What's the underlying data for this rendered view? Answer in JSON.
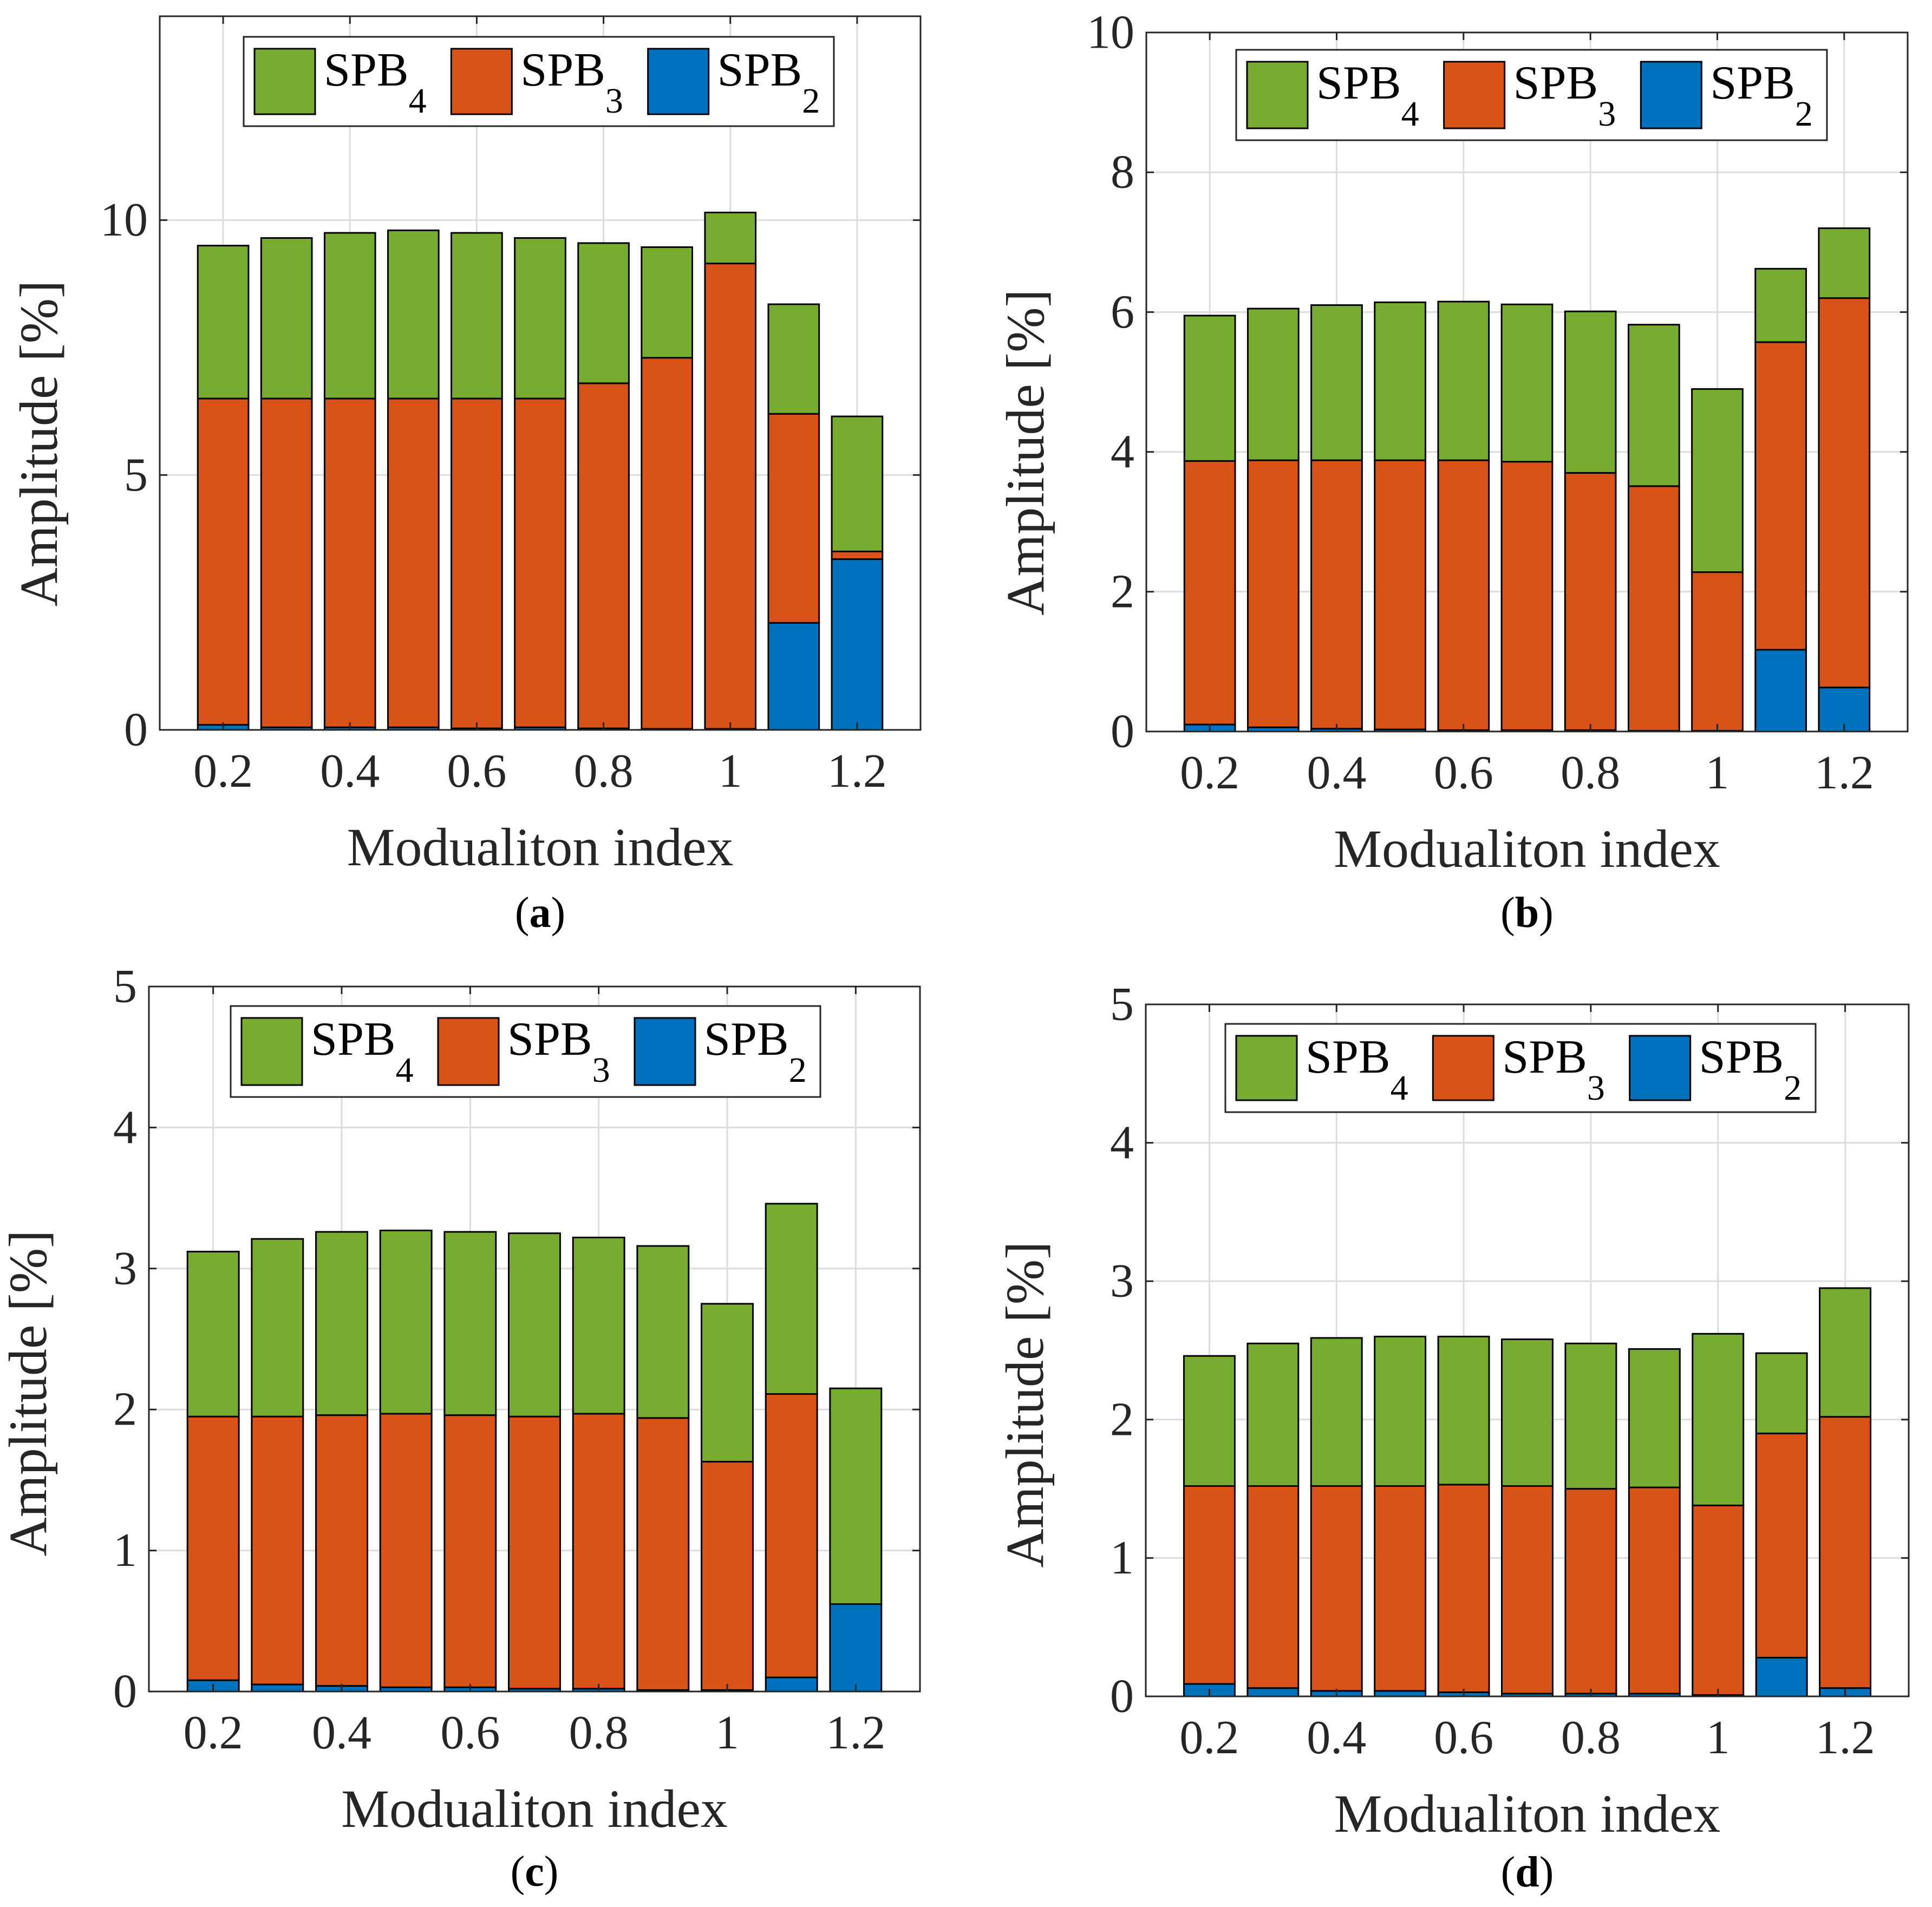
{
  "figure": {
    "colors": {
      "SPB4": "#77ac30",
      "SPB3": "#d95319",
      "SPB2": "#0072bd"
    },
    "legend": [
      {
        "main": "SPB",
        "sub": "4"
      },
      {
        "main": "SPB",
        "sub": "3"
      },
      {
        "main": "SPB",
        "sub": "2"
      }
    ]
  },
  "chart_data": [
    {
      "panel": "a",
      "caption_label": "a",
      "type": "bar",
      "stacked": true,
      "xlabel": "Modualiton index",
      "ylabel": "Amplitude [%]",
      "x": [
        0.2,
        0.3,
        0.4,
        0.5,
        0.6,
        0.7,
        0.8,
        0.9,
        1.0,
        1.1,
        1.2
      ],
      "xticks": [
        "0.2",
        "0.4",
        "0.6",
        "0.8",
        "1",
        "1.2"
      ],
      "xtick_values": [
        0.2,
        0.4,
        0.6,
        0.8,
        1.0,
        1.2
      ],
      "xlim": [
        0.1,
        1.3
      ],
      "ylim": [
        0,
        14
      ],
      "yticks": [
        0,
        5,
        10
      ],
      "ytick_labels": [
        "0",
        "5",
        "10"
      ],
      "grid": true,
      "legend_position": "top",
      "series": [
        {
          "name": "SPB2",
          "values": [
            0.1,
            0.05,
            0.05,
            0.05,
            0.03,
            0.05,
            0.03,
            0.02,
            0.02,
            2.1,
            3.35
          ]
        },
        {
          "name": "SPB3",
          "values": [
            6.4,
            6.45,
            6.45,
            6.45,
            6.47,
            6.45,
            6.77,
            7.28,
            9.13,
            4.1,
            0.15
          ]
        },
        {
          "name": "SPB4",
          "values": [
            3.0,
            3.15,
            3.25,
            3.3,
            3.25,
            3.15,
            2.75,
            2.17,
            1.0,
            2.15,
            2.65
          ]
        }
      ]
    },
    {
      "panel": "b",
      "caption_label": "b",
      "type": "bar",
      "stacked": true,
      "xlabel": "Modualiton index",
      "ylabel": "Amplitude [%]",
      "x": [
        0.2,
        0.3,
        0.4,
        0.5,
        0.6,
        0.7,
        0.8,
        0.9,
        1.0,
        1.1,
        1.2
      ],
      "xticks": [
        "0.2",
        "0.4",
        "0.6",
        "0.8",
        "1",
        "1.2"
      ],
      "xtick_values": [
        0.2,
        0.4,
        0.6,
        0.8,
        1.0,
        1.2
      ],
      "xlim": [
        0.1,
        1.3
      ],
      "ylim": [
        0,
        10
      ],
      "yticks": [
        0,
        2,
        4,
        6,
        8,
        10
      ],
      "ytick_labels": [
        "0",
        "2",
        "4",
        "6",
        "8",
        "10"
      ],
      "grid": true,
      "legend_position": "top",
      "series": [
        {
          "name": "SPB2",
          "values": [
            0.1,
            0.06,
            0.04,
            0.03,
            0.02,
            0.02,
            0.02,
            0.01,
            0.01,
            1.17,
            0.63
          ]
        },
        {
          "name": "SPB3",
          "values": [
            3.77,
            3.82,
            3.84,
            3.85,
            3.86,
            3.84,
            3.68,
            3.5,
            2.27,
            4.4,
            5.57
          ]
        },
        {
          "name": "SPB4",
          "values": [
            2.08,
            2.17,
            2.22,
            2.26,
            2.27,
            2.25,
            2.31,
            2.31,
            2.62,
            1.05,
            1.0
          ]
        }
      ]
    },
    {
      "panel": "c",
      "caption_label": "c",
      "type": "bar",
      "stacked": true,
      "xlabel": "Modualiton index",
      "ylabel": "Amplitude [%]",
      "x": [
        0.2,
        0.3,
        0.4,
        0.5,
        0.6,
        0.7,
        0.8,
        0.9,
        1.0,
        1.1,
        1.2
      ],
      "xticks": [
        "0.2",
        "0.4",
        "0.6",
        "0.8",
        "1",
        "1.2"
      ],
      "xtick_values": [
        0.2,
        0.4,
        0.6,
        0.8,
        1.0,
        1.2
      ],
      "xlim": [
        0.1,
        1.3
      ],
      "ylim": [
        0,
        5
      ],
      "yticks": [
        0,
        1,
        2,
        3,
        4,
        5
      ],
      "ytick_labels": [
        "0",
        "1",
        "2",
        "3",
        "4",
        "5"
      ],
      "grid": true,
      "legend_position": "top",
      "series": [
        {
          "name": "SPB2",
          "values": [
            0.08,
            0.05,
            0.04,
            0.03,
            0.03,
            0.02,
            0.02,
            0.01,
            0.01,
            0.1,
            0.62
          ]
        },
        {
          "name": "SPB3",
          "values": [
            1.87,
            1.9,
            1.92,
            1.94,
            1.93,
            1.93,
            1.95,
            1.93,
            1.62,
            2.01,
            0.0
          ]
        },
        {
          "name": "SPB4",
          "values": [
            1.17,
            1.26,
            1.3,
            1.3,
            1.3,
            1.3,
            1.25,
            1.22,
            1.12,
            1.35,
            1.53
          ]
        }
      ]
    },
    {
      "panel": "d",
      "caption_label": "d",
      "type": "bar",
      "stacked": true,
      "xlabel": "Modualiton index",
      "ylabel": "Amplitude [%]",
      "x": [
        0.2,
        0.3,
        0.4,
        0.5,
        0.6,
        0.7,
        0.8,
        0.9,
        1.0,
        1.1,
        1.2
      ],
      "xticks": [
        "0.2",
        "0.4",
        "0.6",
        "0.8",
        "1",
        "1.2"
      ],
      "xtick_values": [
        0.2,
        0.4,
        0.6,
        0.8,
        1.0,
        1.2
      ],
      "xlim": [
        0.1,
        1.3
      ],
      "ylim": [
        0,
        5
      ],
      "yticks": [
        0,
        1,
        2,
        3,
        4,
        5
      ],
      "ytick_labels": [
        "0",
        "1",
        "2",
        "3",
        "4",
        "5"
      ],
      "grid": true,
      "legend_position": "top",
      "series": [
        {
          "name": "SPB2",
          "values": [
            0.09,
            0.06,
            0.04,
            0.04,
            0.03,
            0.02,
            0.02,
            0.02,
            0.01,
            0.28,
            0.06
          ]
        },
        {
          "name": "SPB3",
          "values": [
            1.43,
            1.46,
            1.48,
            1.48,
            1.5,
            1.5,
            1.48,
            1.49,
            1.37,
            1.62,
            1.96
          ]
        },
        {
          "name": "SPB4",
          "values": [
            0.94,
            1.03,
            1.07,
            1.08,
            1.07,
            1.06,
            1.05,
            1.0,
            1.24,
            0.58,
            0.93
          ]
        }
      ]
    }
  ]
}
